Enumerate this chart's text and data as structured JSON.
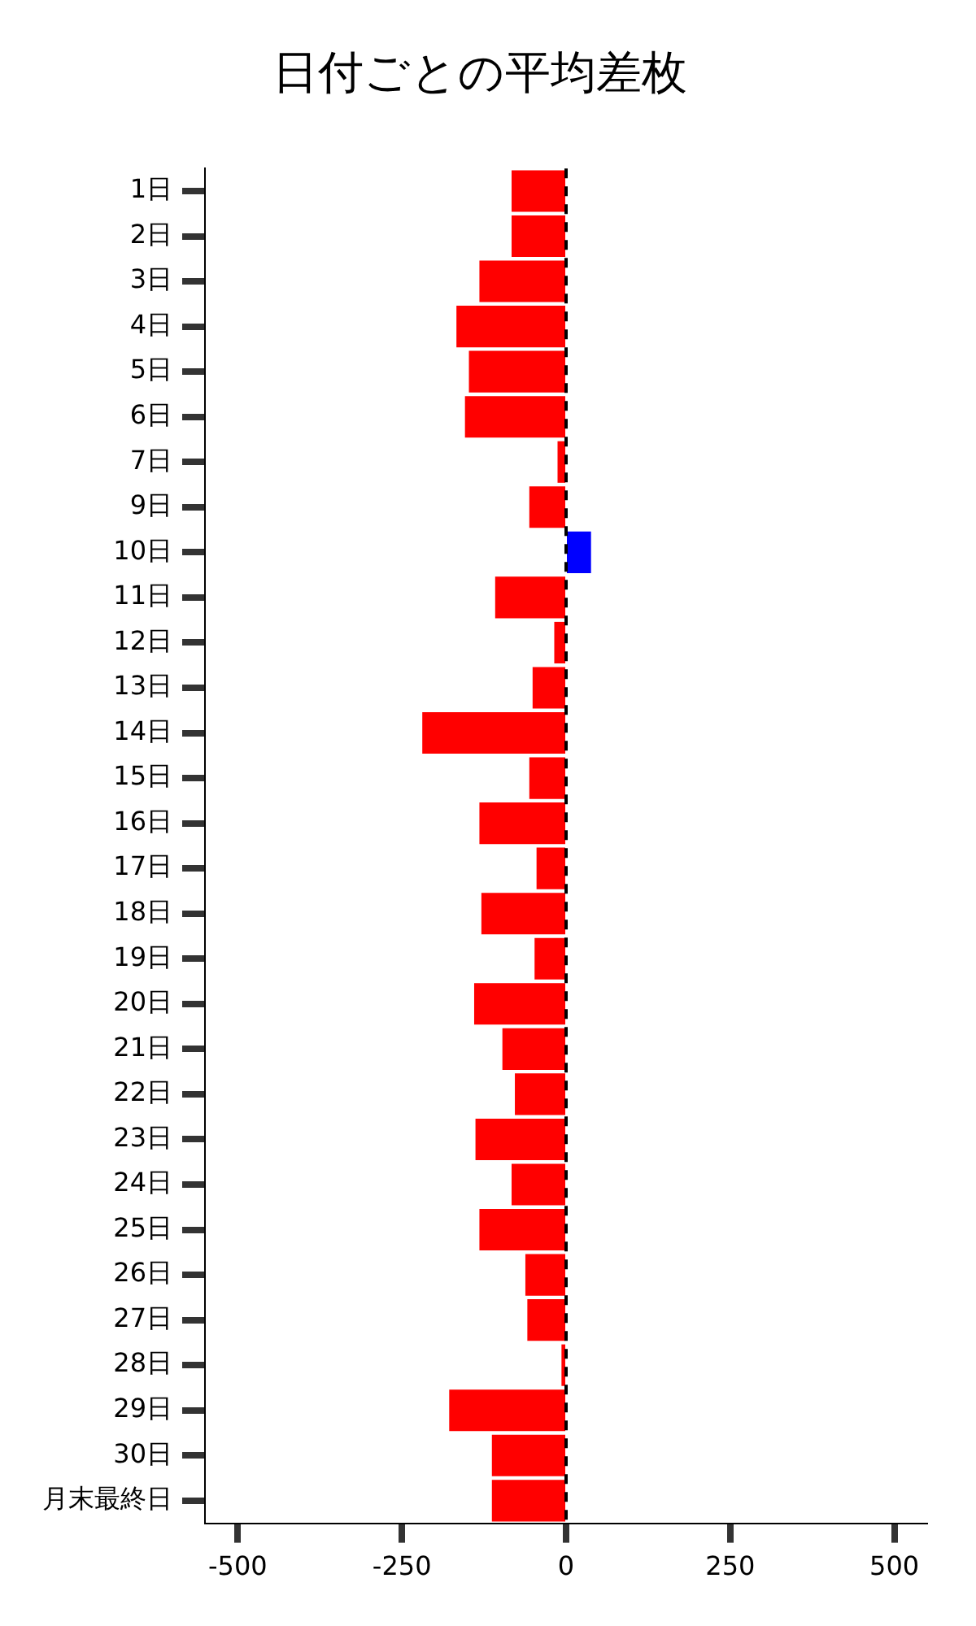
{
  "chart_data": {
    "type": "bar",
    "orientation": "horizontal",
    "title": "日付ごとの平均差枚",
    "categories": [
      "1日",
      "2日",
      "3日",
      "4日",
      "5日",
      "6日",
      "7日",
      "9日",
      "10日",
      "11日",
      "12日",
      "13日",
      "14日",
      "15日",
      "16日",
      "17日",
      "18日",
      "19日",
      "20日",
      "21日",
      "22日",
      "23日",
      "24日",
      "25日",
      "26日",
      "27日",
      "28日",
      "29日",
      "30日",
      "月末最終日"
    ],
    "values": [
      -83,
      -83,
      -132,
      -167,
      -148,
      -154,
      -13,
      -56,
      38,
      -108,
      -18,
      -51,
      -219,
      -56,
      -132,
      -45,
      -129,
      -48,
      -140,
      -97,
      -78,
      -138,
      -83,
      -132,
      -62,
      -59,
      -7,
      -178,
      -113,
      -113
    ],
    "colors": [
      "#ff0000",
      "#ff0000",
      "#ff0000",
      "#ff0000",
      "#ff0000",
      "#ff0000",
      "#ff0000",
      "#ff0000",
      "#0000ff",
      "#ff0000",
      "#ff0000",
      "#ff0000",
      "#ff0000",
      "#ff0000",
      "#ff0000",
      "#ff0000",
      "#ff0000",
      "#ff0000",
      "#ff0000",
      "#ff0000",
      "#ff0000",
      "#ff0000",
      "#ff0000",
      "#ff0000",
      "#ff0000",
      "#ff0000",
      "#ff0000",
      "#ff0000",
      "#ff0000",
      "#ff0000"
    ],
    "xlim": [
      -550,
      550
    ],
    "xticks": [
      -500,
      -250,
      0,
      250,
      500
    ],
    "ref_lines": [
      {
        "axis": "x",
        "value": 0,
        "color": "#000000",
        "line_style": "dashed"
      }
    ],
    "grid": false,
    "legend": false
  }
}
